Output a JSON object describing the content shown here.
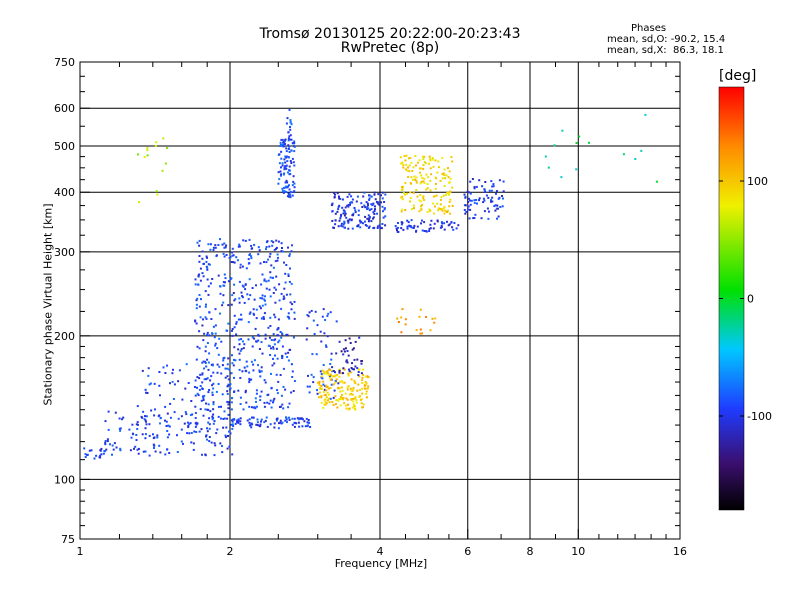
{
  "header": {
    "title_line1": "Tromsø 20130125 20:22:00-20:23:43",
    "title_line2": "RwPretec (8p)",
    "stats_title": "Phases",
    "stats_line1": "mean, sd,O: -90.2, 15.4",
    "stats_line2": "mean, sd,X:  86.3, 18.1"
  },
  "axes": {
    "xlabel": "Frequency [MHz]",
    "ylabel": "Stationary phase Virtual Height [km]"
  },
  "colorbar": {
    "unit": "[deg]",
    "range": [
      -180,
      180
    ],
    "ticks": [
      {
        "value": 100,
        "label": "100"
      },
      {
        "value": 0,
        "label": "0"
      },
      {
        "value": -100,
        "label": "-100"
      }
    ]
  },
  "chart_data": {
    "type": "scatter",
    "title": "Tromsø 20130125 20:22:00-20:23:43",
    "subtitle": "RwPretec (8p)",
    "xlabel": "Frequency [MHz]",
    "ylabel": "Stationary phase Virtual Height [km]",
    "xscale": "log",
    "yscale": "log",
    "xlim": [
      1,
      16
    ],
    "ylim": [
      75,
      750
    ],
    "grid": true,
    "x_ticks": [
      {
        "value": 1,
        "label": "1"
      },
      {
        "value": 2,
        "label": "2"
      },
      {
        "value": 4,
        "label": "4"
      },
      {
        "value": 6,
        "label": "6"
      },
      {
        "value": 8,
        "label": "8"
      },
      {
        "value": 10,
        "label": "10"
      },
      {
        "value": 16,
        "label": "16"
      }
    ],
    "y_ticks": [
      {
        "value": 75,
        "label": "75"
      },
      {
        "value": 100,
        "label": "100"
      },
      {
        "value": 200,
        "label": "200"
      },
      {
        "value": 300,
        "label": "300"
      },
      {
        "value": 400,
        "label": "400"
      },
      {
        "value": 500,
        "label": "500"
      },
      {
        "value": 600,
        "label": "600"
      },
      {
        "value": 750,
        "label": "750"
      }
    ],
    "x_gridlines": [
      2,
      4,
      6,
      8,
      10
    ],
    "y_gridlines": [
      100,
      200,
      300,
      400,
      500,
      600
    ],
    "color_variable": "phase [deg]",
    "color_range": [
      -180,
      180
    ],
    "clusters": [
      {
        "x": [
          1.0,
          1.12
        ],
        "y": [
          110,
          117
        ],
        "phase": -95,
        "n": 18
      },
      {
        "x": [
          1.12,
          2.05
        ],
        "y": [
          112,
          140
        ],
        "phase": -95,
        "n": 160
      },
      {
        "x": [
          1.3,
          2.1
        ],
        "y": [
          130,
          175
        ],
        "phase": -92,
        "n": 90
      },
      {
        "x": [
          1.7,
          2.7
        ],
        "y": [
          140,
          320
        ],
        "phase": -92,
        "n": 520
      },
      {
        "x": [
          2.0,
          2.9
        ],
        "y": [
          128,
          135
        ],
        "phase": -95,
        "n": 80
      },
      {
        "x": [
          2.5,
          2.7
        ],
        "y": [
          390,
          520
        ],
        "phase": -90,
        "n": 110
      },
      {
        "x": [
          2.6,
          2.66
        ],
        "y": [
          520,
          600
        ],
        "phase": -88,
        "n": 14
      },
      {
        "x": [
          2.85,
          3.3
        ],
        "y": [
          145,
          230
        ],
        "phase": -95,
        "n": 60
      },
      {
        "x": [
          3.0,
          3.8
        ],
        "y": [
          140,
          170
        ],
        "phase": 95,
        "n": 170
      },
      {
        "x": [
          3.3,
          3.7
        ],
        "y": [
          165,
          200
        ],
        "phase": -120,
        "n": 40
      },
      {
        "x": [
          3.2,
          4.1
        ],
        "y": [
          335,
          400
        ],
        "phase": -100,
        "n": 160
      },
      {
        "x": [
          4.3,
          5.8
        ],
        "y": [
          330,
          350
        ],
        "phase": -100,
        "n": 60
      },
      {
        "x": [
          4.4,
          5.6
        ],
        "y": [
          360,
          480
        ],
        "phase": 90,
        "n": 170
      },
      {
        "x": [
          5.9,
          7.1
        ],
        "y": [
          350,
          430
        ],
        "phase": -98,
        "n": 80
      },
      {
        "x": [
          4.3,
          5.2
        ],
        "y": [
          200,
          230
        ],
        "phase": 120,
        "n": 18
      },
      {
        "x": [
          1.3,
          1.5
        ],
        "y": [
          370,
          530
        ],
        "phase": 60,
        "n": 14
      },
      {
        "x": [
          8.5,
          14.5
        ],
        "y": [
          400,
          620
        ],
        "phase": -20,
        "n": 14
      }
    ]
  }
}
